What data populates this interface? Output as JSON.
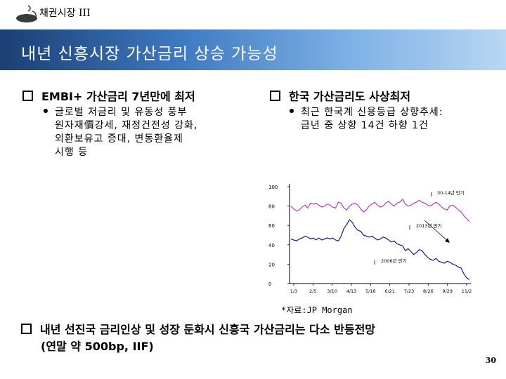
{
  "header": {
    "section_label": "채권시장 III",
    "title": "내년 신흥시장 가산금리 상승 가능성"
  },
  "left": {
    "heading": "EMBI+ 가산금리 7년만에 최저",
    "bullet_lines": [
      "글로벌 저금리 및 유동성 풍부",
      "원자재價강세, 재정건전성 강화,",
      "외환보유고 증대, 변동환율제",
      "시행 등"
    ]
  },
  "right": {
    "heading": "한국 가산금리도 사상최저",
    "bullet_lines": [
      "최근 한국계 신용등급 상향추세:",
      "금년 중 상향 14건 하향 1건"
    ]
  },
  "chart_data": {
    "type": "line",
    "title": "",
    "xlabel": "",
    "ylabel": "",
    "y_ticks": [
      "100",
      "80",
      "60",
      "40",
      "20",
      "0"
    ],
    "ylim": [
      0,
      100
    ],
    "x_ticks": [
      "1/3",
      "2/5",
      "3/10",
      "4/13",
      "5/16",
      "6/21",
      "7/23",
      "8/26",
      "9/29",
      "11/2"
    ],
    "annotations": [
      "30-14년 만기",
      "2013년 만기",
      "2006년 만기"
    ],
    "series": [
      {
        "color": "#c03cc0",
        "values": [
          80,
          77,
          75,
          76,
          79,
          81,
          78,
          83,
          82,
          83,
          81,
          79,
          80,
          82,
          81,
          79,
          78,
          84,
          83,
          78,
          76,
          80,
          82,
          83,
          81,
          77,
          74,
          76,
          80,
          82,
          84,
          81,
          79,
          80,
          83,
          85,
          82,
          80,
          83,
          84,
          87,
          82,
          80,
          81,
          83,
          84,
          86,
          84,
          83,
          81,
          80,
          82,
          84,
          82,
          79,
          77,
          76,
          80,
          81,
          79,
          76,
          74,
          70,
          67,
          64
        ]
      },
      {
        "color": "#1a1a8c",
        "values": [
          46,
          45,
          44,
          46,
          47,
          49,
          48,
          46,
          47,
          45,
          47,
          45,
          46,
          47,
          46,
          47,
          45,
          44,
          49,
          57,
          61,
          66,
          63,
          58,
          55,
          54,
          50,
          49,
          48,
          49,
          47,
          45,
          46,
          48,
          47,
          45,
          43,
          44,
          41,
          40,
          39,
          34,
          36,
          33,
          30,
          32,
          35,
          34,
          30,
          27,
          25,
          24,
          26,
          23,
          22,
          21,
          23,
          22,
          20,
          19,
          17,
          16,
          10,
          6,
          4
        ]
      }
    ]
  },
  "source_note": "*자료:JP Morgan",
  "bottom": {
    "line1": "내년 선진국 금리인상 및 성장 둔화시 신흥국 가산금리는 다소 반등전망",
    "line2": "(연말 약 500bp, IIF)"
  },
  "page_number": "30"
}
